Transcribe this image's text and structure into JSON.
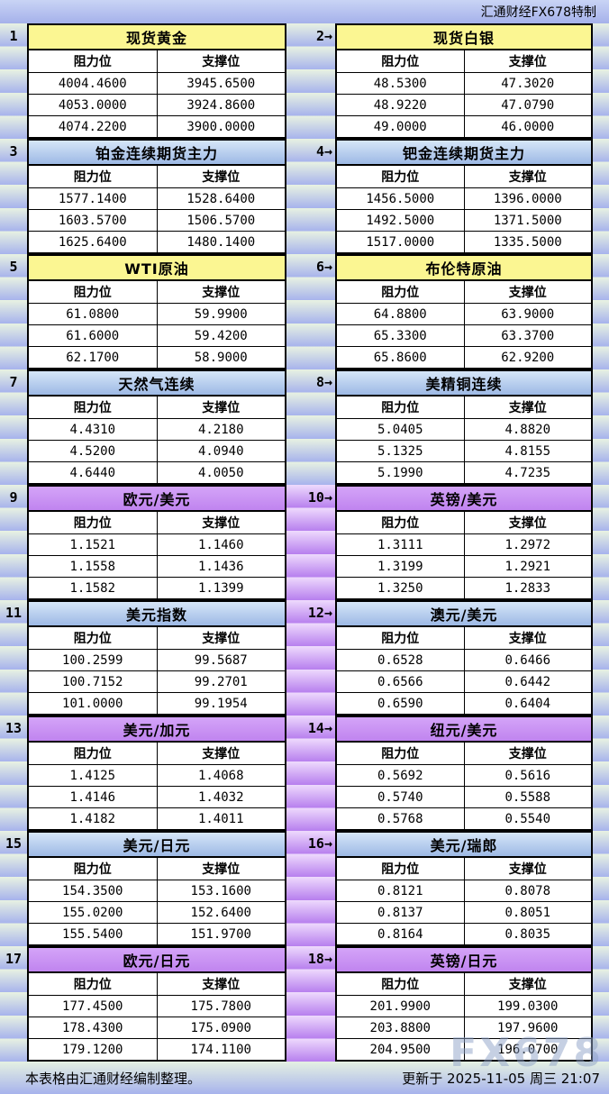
{
  "header": {
    "brand": "汇通财经FX678特制"
  },
  "icons": {
    "arrow_right": "→"
  },
  "footer": {
    "left": "本表格由汇通财经编制整理。",
    "right": "更新于 2025-11-05 周三 21:07",
    "watermark": "FX678"
  },
  "colors": {
    "yellow_title": "#fbf692",
    "blue_title_top": "#d6e6f8",
    "blue_title_bottom": "#9db9e5",
    "purple_title": "#c68ef3",
    "stripe_green_light": "#e8f2e2",
    "stripe_blue": "#a7b3ec",
    "stripe_purple_light": "#eedafd",
    "stripe_purple": "#b77fee",
    "border": "#000000"
  },
  "chart_data": [
    {
      "type": "table",
      "num": "1",
      "title": "现货黄金",
      "theme": "yellow",
      "columns": [
        "阻力位",
        "支撑位"
      ],
      "rows": [
        [
          "4004.4600",
          "3945.6500"
        ],
        [
          "4053.0000",
          "3924.8600"
        ],
        [
          "4074.2200",
          "3900.0000"
        ]
      ]
    },
    {
      "type": "table",
      "num": "2",
      "title": "现货白银",
      "theme": "yellow",
      "columns": [
        "阻力位",
        "支撑位"
      ],
      "rows": [
        [
          "48.5300",
          "47.3020"
        ],
        [
          "48.9220",
          "47.0790"
        ],
        [
          "49.0000",
          "46.0000"
        ]
      ]
    },
    {
      "type": "table",
      "num": "3",
      "title": "铂金连续期货主力",
      "theme": "blue",
      "columns": [
        "阻力位",
        "支撑位"
      ],
      "rows": [
        [
          "1577.1400",
          "1528.6400"
        ],
        [
          "1603.5700",
          "1506.5700"
        ],
        [
          "1625.6400",
          "1480.1400"
        ]
      ]
    },
    {
      "type": "table",
      "num": "4",
      "title": "钯金连续期货主力",
      "theme": "blue",
      "columns": [
        "阻力位",
        "支撑位"
      ],
      "rows": [
        [
          "1456.5000",
          "1396.0000"
        ],
        [
          "1492.5000",
          "1371.5000"
        ],
        [
          "1517.0000",
          "1335.5000"
        ]
      ]
    },
    {
      "type": "table",
      "num": "5",
      "title": "WTI原油",
      "theme": "yellow",
      "columns": [
        "阻力位",
        "支撑位"
      ],
      "rows": [
        [
          "61.0800",
          "59.9900"
        ],
        [
          "61.6000",
          "59.4200"
        ],
        [
          "62.1700",
          "58.9000"
        ]
      ]
    },
    {
      "type": "table",
      "num": "6",
      "title": "布伦特原油",
      "theme": "yellow",
      "columns": [
        "阻力位",
        "支撑位"
      ],
      "rows": [
        [
          "64.8800",
          "63.9000"
        ],
        [
          "65.3300",
          "63.3700"
        ],
        [
          "65.8600",
          "62.9200"
        ]
      ]
    },
    {
      "type": "table",
      "num": "7",
      "title": "天然气连续",
      "theme": "blue",
      "columns": [
        "阻力位",
        "支撑位"
      ],
      "rows": [
        [
          "4.4310",
          "4.2180"
        ],
        [
          "4.5200",
          "4.0940"
        ],
        [
          "4.6440",
          "4.0050"
        ]
      ]
    },
    {
      "type": "table",
      "num": "8",
      "title": "美精铜连续",
      "theme": "blue",
      "columns": [
        "阻力位",
        "支撑位"
      ],
      "rows": [
        [
          "5.0405",
          "4.8820"
        ],
        [
          "5.1325",
          "4.8155"
        ],
        [
          "5.1990",
          "4.7235"
        ]
      ]
    },
    {
      "type": "table",
      "num": "9",
      "title": "欧元/美元",
      "theme": "purple",
      "columns": [
        "阻力位",
        "支撑位"
      ],
      "rows": [
        [
          "1.1521",
          "1.1460"
        ],
        [
          "1.1558",
          "1.1436"
        ],
        [
          "1.1582",
          "1.1399"
        ]
      ]
    },
    {
      "type": "table",
      "num": "10",
      "title": "英镑/美元",
      "theme": "purple",
      "columns": [
        "阻力位",
        "支撑位"
      ],
      "rows": [
        [
          "1.3111",
          "1.2972"
        ],
        [
          "1.3199",
          "1.2921"
        ],
        [
          "1.3250",
          "1.2833"
        ]
      ]
    },
    {
      "type": "table",
      "num": "11",
      "title": "美元指数",
      "theme": "blue",
      "columns": [
        "阻力位",
        "支撑位"
      ],
      "rows": [
        [
          "100.2599",
          "99.5687"
        ],
        [
          "100.7152",
          "99.2701"
        ],
        [
          "101.0000",
          "99.1954"
        ]
      ]
    },
    {
      "type": "table",
      "num": "12",
      "title": "澳元/美元",
      "theme": "blue",
      "columns": [
        "阻力位",
        "支撑位"
      ],
      "rows": [
        [
          "0.6528",
          "0.6466"
        ],
        [
          "0.6566",
          "0.6442"
        ],
        [
          "0.6590",
          "0.6404"
        ]
      ]
    },
    {
      "type": "table",
      "num": "13",
      "title": "美元/加元",
      "theme": "purple",
      "columns": [
        "阻力位",
        "支撑位"
      ],
      "rows": [
        [
          "1.4125",
          "1.4068"
        ],
        [
          "1.4146",
          "1.4032"
        ],
        [
          "1.4182",
          "1.4011"
        ]
      ]
    },
    {
      "type": "table",
      "num": "14",
      "title": "纽元/美元",
      "theme": "purple",
      "columns": [
        "阻力位",
        "支撑位"
      ],
      "rows": [
        [
          "0.5692",
          "0.5616"
        ],
        [
          "0.5740",
          "0.5588"
        ],
        [
          "0.5768",
          "0.5540"
        ]
      ]
    },
    {
      "type": "table",
      "num": "15",
      "title": "美元/日元",
      "theme": "blue",
      "columns": [
        "阻力位",
        "支撑位"
      ],
      "rows": [
        [
          "154.3500",
          "153.1600"
        ],
        [
          "155.0200",
          "152.6400"
        ],
        [
          "155.5400",
          "151.9700"
        ]
      ]
    },
    {
      "type": "table",
      "num": "16",
      "title": "美元/瑞郎",
      "theme": "blue",
      "columns": [
        "阻力位",
        "支撑位"
      ],
      "rows": [
        [
          "0.8121",
          "0.8078"
        ],
        [
          "0.8137",
          "0.8051"
        ],
        [
          "0.8164",
          "0.8035"
        ]
      ]
    },
    {
      "type": "table",
      "num": "17",
      "title": "欧元/日元",
      "theme": "purple",
      "columns": [
        "阻力位",
        "支撑位"
      ],
      "rows": [
        [
          "177.4500",
          "175.7800"
        ],
        [
          "178.4300",
          "175.0900"
        ],
        [
          "179.1200",
          "174.1100"
        ]
      ]
    },
    {
      "type": "table",
      "num": "18",
      "title": "英镑/日元",
      "theme": "purple",
      "columns": [
        "阻力位",
        "支撑位"
      ],
      "rows": [
        [
          "201.9900",
          "199.0300"
        ],
        [
          "203.8800",
          "197.9600"
        ],
        [
          "204.9500",
          "196.0700"
        ]
      ]
    }
  ]
}
